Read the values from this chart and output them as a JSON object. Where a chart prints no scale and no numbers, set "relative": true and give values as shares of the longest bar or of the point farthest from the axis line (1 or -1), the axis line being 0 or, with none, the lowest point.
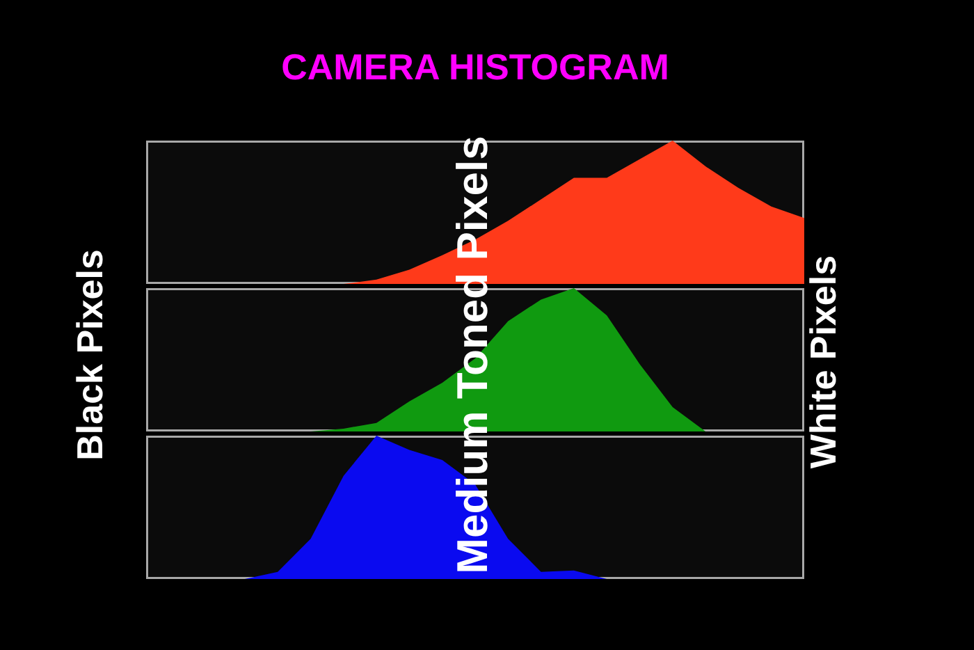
{
  "chart_data": [
    {
      "type": "area",
      "title": "CAMERA HISTOGRAM",
      "relative": true,
      "categories": [
        null,
        null,
        null,
        null,
        null,
        null,
        null,
        null,
        null,
        null,
        null,
        null,
        null,
        null,
        null,
        null,
        null,
        null,
        null,
        null,
        null
      ],
      "series": [
        {
          "color": "#ff3a1a",
          "values": [
            0,
            0,
            0,
            0,
            0,
            0,
            0,
            0.03,
            0.1,
            0.2,
            0.31,
            0.44,
            0.59,
            0.74,
            0.74,
            0.87,
            1,
            0.82,
            0.67,
            0.54,
            0.46
          ]
        }
      ]
    },
    {
      "type": "area",
      "relative": true,
      "annotations": [
        "Black Pixels",
        "Medium Toned Pixels",
        "White Pixels"
      ],
      "categories": [
        null,
        null,
        null,
        null,
        null,
        null,
        null,
        null,
        null,
        null,
        null,
        null,
        null,
        null,
        null,
        null,
        null,
        null,
        null,
        null,
        null
      ],
      "series": [
        {
          "color": "#109a10",
          "values": [
            0,
            0,
            0,
            0,
            0,
            0,
            0.02,
            0.06,
            0.21,
            0.34,
            0.51,
            0.77,
            0.92,
            1,
            0.81,
            0.47,
            0.17,
            0,
            0,
            0,
            0
          ]
        }
      ]
    },
    {
      "type": "area",
      "relative": true,
      "categories": [
        null,
        null,
        null,
        null,
        null,
        null,
        null,
        null,
        null,
        null,
        null,
        null,
        null,
        null,
        null,
        null,
        null,
        null,
        null,
        null,
        null
      ],
      "series": [
        {
          "color": "#0a0af0",
          "values": [
            0,
            0,
            0,
            0,
            0.05,
            0.28,
            0.72,
            1,
            0.9,
            0.83,
            0.66,
            0.28,
            0.05,
            0.06,
            0,
            0,
            0,
            0,
            0,
            0,
            0
          ]
        }
      ]
    }
  ]
}
